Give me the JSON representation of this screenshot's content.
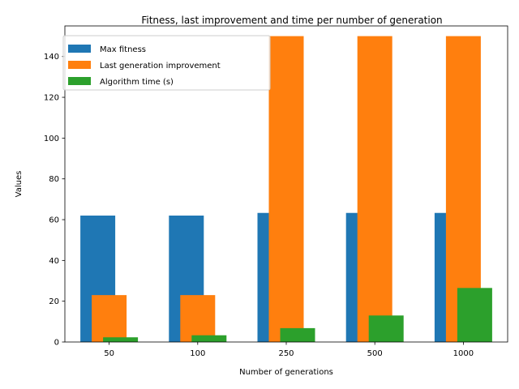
{
  "chart_data": {
    "type": "bar",
    "title": "Fitness, last improvement and time per number of generation",
    "xlabel": "Number of generations",
    "ylabel": "Values",
    "categories": [
      "50",
      "100",
      "250",
      "500",
      "1000"
    ],
    "ylim": [
      0,
      155
    ],
    "yticks": [
      0,
      20,
      40,
      60,
      80,
      100,
      120,
      140
    ],
    "legend_position": "upper-left",
    "series": [
      {
        "name": "Max fitness",
        "color": "#1f77b4",
        "values": [
          62,
          62,
          63.3,
          63.3,
          63.3
        ]
      },
      {
        "name": "Last generation improvement",
        "color": "#ff7f0e",
        "values": [
          23,
          23,
          150,
          150,
          150
        ]
      },
      {
        "name": "Algorithm time (s)",
        "color": "#2ca02c",
        "values": [
          2.3,
          3.3,
          6.8,
          13,
          26.5
        ]
      }
    ]
  }
}
